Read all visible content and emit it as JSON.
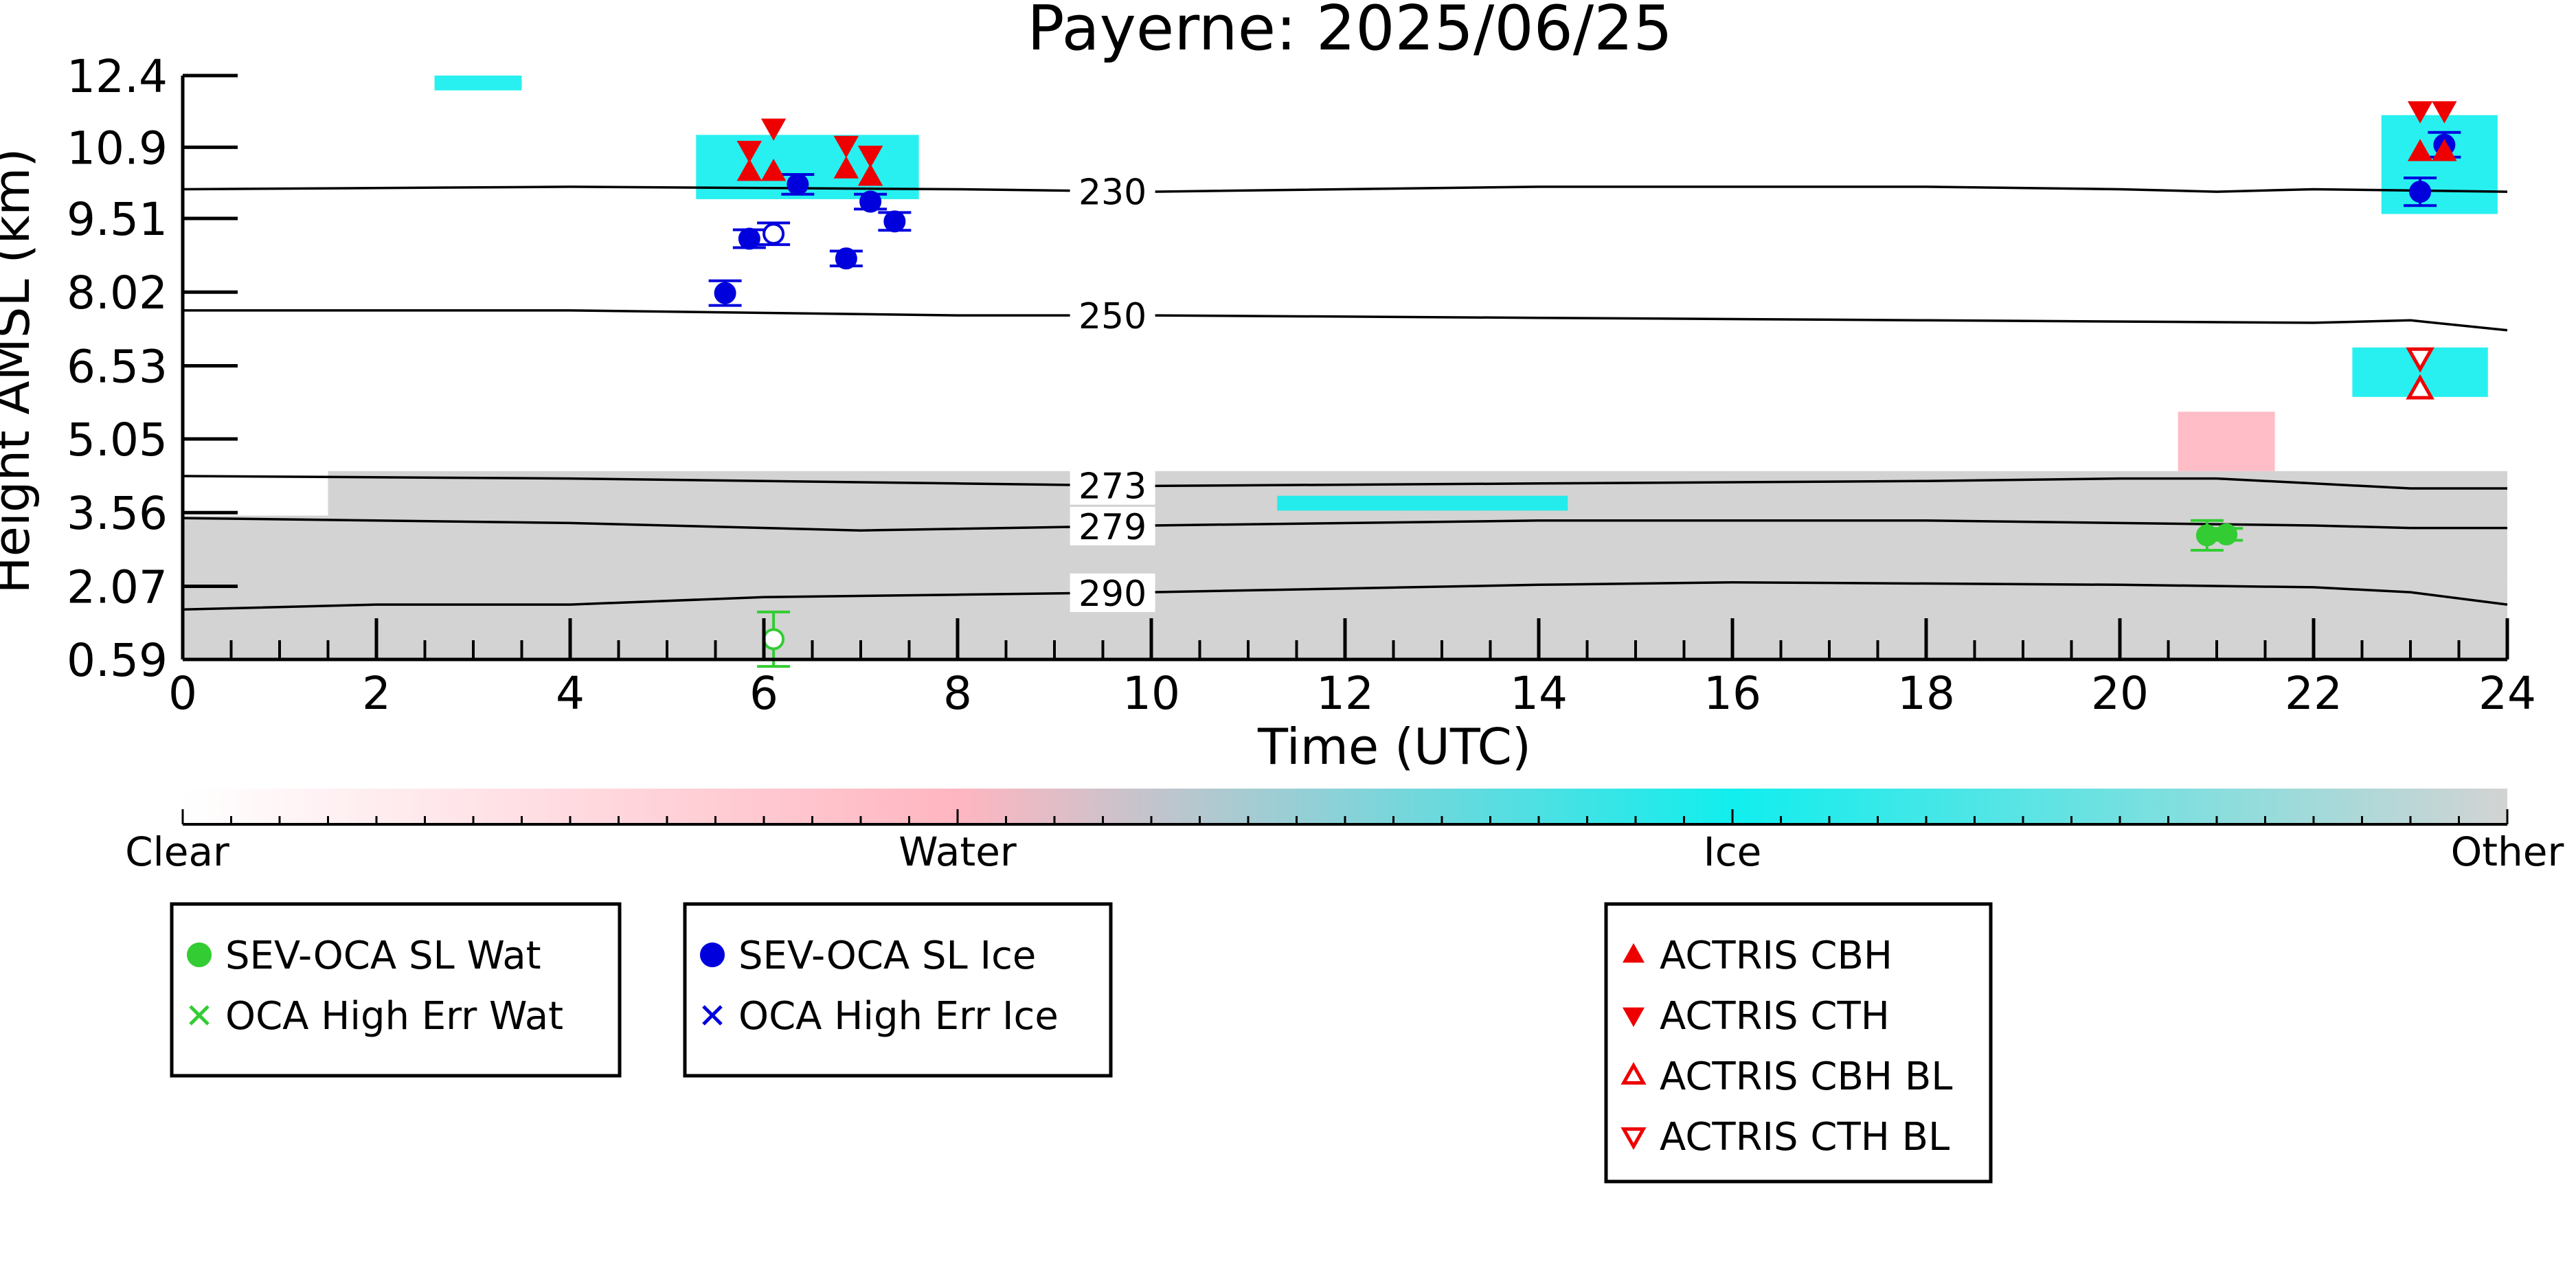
{
  "chart_data": {
    "type": "scatter",
    "title": "Payerne: 2025/06/25",
    "xlabel": "Time (UTC)",
    "ylabel": "Height AMSL (km)",
    "xlim": [
      0,
      24
    ],
    "ylim": [
      0.59,
      12.4
    ],
    "x_ticks": [
      "0",
      "2",
      "4",
      "6",
      "8",
      "10",
      "12",
      "14",
      "16",
      "18",
      "20",
      "22",
      "24"
    ],
    "x_tick_values": [
      0,
      2,
      4,
      6,
      8,
      10,
      12,
      14,
      16,
      18,
      20,
      22,
      24
    ],
    "y_ticks": [
      "0.59",
      "2.07",
      "3.56",
      "5.05",
      "6.53",
      "8.02",
      "9.51",
      "10.9",
      "12.4"
    ],
    "y_tick_values": [
      0.59,
      2.07,
      3.56,
      5.05,
      6.53,
      8.02,
      9.51,
      10.95,
      12.4
    ],
    "grid": false,
    "colors": {
      "water_marker": "#33cc33",
      "ice_marker": "#0000dd",
      "actris": "#ee0000",
      "ice_mask": "#11eeee",
      "water_mask": "#ffb6c1",
      "other_mask": "#d3d3d3"
    },
    "isotherms": [
      {
        "label": "230",
        "label_x": 9.6,
        "points": [
          [
            0,
            10.1
          ],
          [
            4,
            10.15
          ],
          [
            8,
            10.1
          ],
          [
            10,
            10.05
          ],
          [
            14,
            10.15
          ],
          [
            18,
            10.15
          ],
          [
            20,
            10.1
          ],
          [
            21,
            10.05
          ],
          [
            22,
            10.1
          ],
          [
            24,
            10.05
          ]
        ]
      },
      {
        "label": "250",
        "label_x": 9.6,
        "points": [
          [
            0,
            7.65
          ],
          [
            4,
            7.65
          ],
          [
            8,
            7.55
          ],
          [
            10,
            7.55
          ],
          [
            14,
            7.5
          ],
          [
            18,
            7.45
          ],
          [
            22,
            7.4
          ],
          [
            23,
            7.45
          ],
          [
            24,
            7.25
          ]
        ]
      },
      {
        "label": "273",
        "label_x": 9.6,
        "points": [
          [
            0,
            4.3
          ],
          [
            4,
            4.25
          ],
          [
            8,
            4.15
          ],
          [
            10,
            4.1
          ],
          [
            14,
            4.15
          ],
          [
            18,
            4.2
          ],
          [
            20,
            4.25
          ],
          [
            21,
            4.25
          ],
          [
            22,
            4.15
          ],
          [
            23,
            4.05
          ],
          [
            24,
            4.05
          ]
        ]
      },
      {
        "label": "279",
        "label_x": 9.6,
        "points": [
          [
            0,
            3.45
          ],
          [
            4,
            3.35
          ],
          [
            7,
            3.2
          ],
          [
            10,
            3.3
          ],
          [
            14,
            3.4
          ],
          [
            18,
            3.4
          ],
          [
            20,
            3.35
          ],
          [
            22,
            3.3
          ],
          [
            23,
            3.25
          ],
          [
            24,
            3.25
          ]
        ]
      },
      {
        "label": "290",
        "label_x": 9.6,
        "points": [
          [
            0,
            1.6
          ],
          [
            2,
            1.7
          ],
          [
            4,
            1.7
          ],
          [
            6,
            1.85
          ],
          [
            8,
            1.9
          ],
          [
            10,
            1.95
          ],
          [
            14,
            2.1
          ],
          [
            16,
            2.15
          ],
          [
            20,
            2.1
          ],
          [
            22,
            2.05
          ],
          [
            23,
            1.95
          ],
          [
            24,
            1.7
          ]
        ]
      }
    ],
    "mask_regions": [
      {
        "class": "Other",
        "x": [
          0,
          24
        ],
        "y": [
          0.59,
          2.2
        ]
      },
      {
        "class": "Other",
        "x": [
          0,
          24
        ],
        "y": [
          2.2,
          3.5
        ]
      },
      {
        "class": "Other",
        "x": [
          1.5,
          24
        ],
        "y": [
          3.5,
          4.4
        ]
      },
      {
        "class": "Ice",
        "x": [
          5.3,
          7.6
        ],
        "y": [
          9.9,
          11.2
        ]
      },
      {
        "class": "Ice",
        "x": [
          2.6,
          3.5
        ],
        "y": [
          12.1,
          12.4
        ]
      },
      {
        "class": "Ice",
        "x": [
          22.7,
          23.9
        ],
        "y": [
          9.6,
          11.6
        ]
      },
      {
        "class": "Ice",
        "x": [
          22.4,
          23.8
        ],
        "y": [
          5.9,
          6.9
        ]
      },
      {
        "class": "Ice",
        "x": [
          11.3,
          14.3
        ],
        "y": [
          3.6,
          3.9
        ]
      },
      {
        "class": "Water",
        "x": [
          20.6,
          21.6
        ],
        "y": [
          4.4,
          5.6
        ]
      }
    ],
    "series": [
      {
        "name": "SEV-OCA SL Wat",
        "marker": "circle",
        "color": "#33cc33",
        "points": [
          {
            "x": 6.1,
            "y": 1.0,
            "err": 0.55,
            "filled": false
          },
          {
            "x": 20.9,
            "y": 3.1,
            "err": 0.3,
            "filled": true
          },
          {
            "x": 21.1,
            "y": 3.12,
            "err": 0.12,
            "filled": true
          }
        ]
      },
      {
        "name": "OCA High Err Wat",
        "marker": "x",
        "color": "#33cc33",
        "points": []
      },
      {
        "name": "SEV-OCA SL Ice",
        "marker": "circle",
        "color": "#0000dd",
        "points": [
          {
            "x": 5.6,
            "y": 8.0,
            "err": 0.25,
            "filled": true
          },
          {
            "x": 5.85,
            "y": 9.1,
            "err": 0.18,
            "filled": true
          },
          {
            "x": 6.1,
            "y": 9.2,
            "err": 0.22,
            "filled": false
          },
          {
            "x": 6.35,
            "y": 10.2,
            "err": 0.2,
            "filled": true
          },
          {
            "x": 6.85,
            "y": 8.7,
            "err": 0.15,
            "filled": true
          },
          {
            "x": 7.1,
            "y": 9.85,
            "err": 0.15,
            "filled": true
          },
          {
            "x": 7.35,
            "y": 9.45,
            "err": 0.18,
            "filled": true
          },
          {
            "x": 23.1,
            "y": 10.05,
            "err": 0.28,
            "filled": true
          },
          {
            "x": 23.35,
            "y": 11.0,
            "err": 0.25,
            "filled": true
          }
        ]
      },
      {
        "name": "OCA High Err Ice",
        "marker": "x",
        "color": "#0000dd",
        "points": []
      },
      {
        "name": "ACTRIS CBH",
        "marker": "triangle-up",
        "color": "#ee0000",
        "points": [
          {
            "x": 5.85,
            "y": 10.45,
            "filled": true
          },
          {
            "x": 6.1,
            "y": 10.45,
            "filled": true
          },
          {
            "x": 6.85,
            "y": 10.5,
            "filled": true
          },
          {
            "x": 7.1,
            "y": 10.35,
            "filled": true
          },
          {
            "x": 23.1,
            "y": 10.85,
            "filled": true
          },
          {
            "x": 23.35,
            "y": 10.85,
            "filled": true
          }
        ]
      },
      {
        "name": "ACTRIS CTH",
        "marker": "triangle-down",
        "color": "#ee0000",
        "points": [
          {
            "x": 5.85,
            "y": 10.9,
            "filled": true
          },
          {
            "x": 6.1,
            "y": 11.35,
            "filled": true
          },
          {
            "x": 6.85,
            "y": 11.0,
            "filled": true
          },
          {
            "x": 7.1,
            "y": 10.8,
            "filled": true
          },
          {
            "x": 23.1,
            "y": 11.7,
            "filled": true
          },
          {
            "x": 23.35,
            "y": 11.7,
            "filled": true
          }
        ]
      },
      {
        "name": "ACTRIS CBH BL",
        "marker": "triangle-up",
        "color": "#ee0000",
        "points": [
          {
            "x": 23.1,
            "y": 6.05,
            "filled": false
          }
        ]
      },
      {
        "name": "ACTRIS CTH BL",
        "marker": "triangle-down",
        "color": "#ee0000",
        "points": [
          {
            "x": 23.1,
            "y": 6.7,
            "filled": false
          }
        ]
      }
    ],
    "colorbar": {
      "labels": [
        "Clear",
        "Water",
        "Ice",
        "Other"
      ],
      "stops": [
        "#ffffff",
        "#ffb6c1",
        "#11eeee",
        "#d3d3d3"
      ]
    },
    "legends": [
      {
        "items": [
          {
            "label": "SEV-OCA SL Wat",
            "marker": "circle",
            "color": "#33cc33",
            "filled": true
          },
          {
            "label": "OCA High Err Wat",
            "marker": "x",
            "color": "#33cc33",
            "filled": true
          }
        ]
      },
      {
        "items": [
          {
            "label": "SEV-OCA SL Ice",
            "marker": "circle",
            "color": "#0000dd",
            "filled": true
          },
          {
            "label": "OCA High Err Ice",
            "marker": "x",
            "color": "#0000dd",
            "filled": true
          }
        ]
      },
      {
        "items": [
          {
            "label": "ACTRIS CBH",
            "marker": "triangle-up",
            "color": "#ee0000",
            "filled": true
          },
          {
            "label": "ACTRIS CTH",
            "marker": "triangle-down",
            "color": "#ee0000",
            "filled": true
          },
          {
            "label": "ACTRIS CBH BL",
            "marker": "triangle-up",
            "color": "#ee0000",
            "filled": false
          },
          {
            "label": "ACTRIS CTH BL",
            "marker": "triangle-down",
            "color": "#ee0000",
            "filled": false
          }
        ]
      }
    ]
  }
}
